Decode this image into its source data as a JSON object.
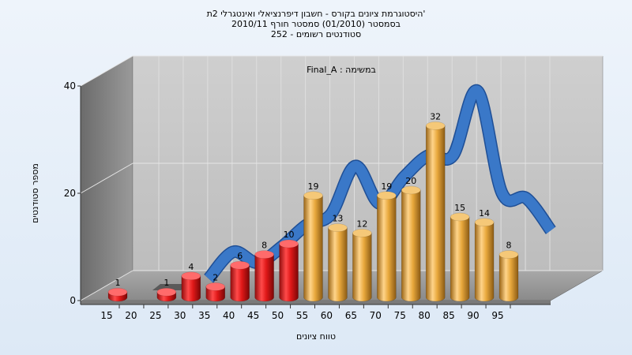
{
  "chart_data": {
    "type": "bar",
    "title_lines": [
      "היסטוגרמת ציונים בקורס - חשבון דיפרנציאלי ואינטגרלי 2ת'",
      "בסמסטר  (01/2010)  סמסטר חורף  2010/11",
      "252 - סטודנטים רשומים"
    ],
    "annotation": "Final_A : במשימה",
    "xlabel": "טווח ציונים",
    "ylabel": "מספר סטודנטים",
    "y_ticks": [
      "0",
      "20",
      "40"
    ],
    "ylim": [
      0,
      40
    ],
    "x_ticks": [
      "15",
      "20",
      "25",
      "30",
      "35",
      "40",
      "45",
      "50",
      "55",
      "60",
      "65",
      "70",
      "75",
      "80",
      "85",
      "90",
      "95"
    ],
    "bars": [
      {
        "x": 15,
        "value": 1,
        "label": "1",
        "color": "#e01818"
      },
      {
        "x": 25,
        "value": 1,
        "label": "1",
        "color": "#e01818"
      },
      {
        "x": 30,
        "value": 4,
        "label": "4",
        "color": "#e01818"
      },
      {
        "x": 35,
        "value": 2,
        "label": "2",
        "color": "#e01818"
      },
      {
        "x": 40,
        "value": 6,
        "label": "6",
        "color": "#e01818"
      },
      {
        "x": 45,
        "value": 8,
        "label": "8",
        "color": "#e01818"
      },
      {
        "x": 50,
        "value": 10,
        "label": "10",
        "color": "#e01818"
      },
      {
        "x": 55,
        "value": 19,
        "label": "19",
        "color": "#e8a83c"
      },
      {
        "x": 60,
        "value": 13,
        "label": "13",
        "color": "#e8a83c"
      },
      {
        "x": 65,
        "value": 12,
        "label": "12",
        "color": "#e8a83c"
      },
      {
        "x": 70,
        "value": 19,
        "label": "19",
        "color": "#e8a83c"
      },
      {
        "x": 75,
        "value": 20,
        "label": "20",
        "color": "#e8a83c"
      },
      {
        "x": 80,
        "value": 32,
        "label": "32",
        "color": "#e8a83c"
      },
      {
        "x": 85,
        "value": 15,
        "label": "15",
        "color": "#e8a83c"
      },
      {
        "x": 90,
        "value": 14,
        "label": "14",
        "color": "#e8a83c"
      },
      {
        "x": 95,
        "value": 8,
        "label": "8",
        "color": "#e8a83c"
      }
    ],
    "curve": {
      "type": "ribbon",
      "color": "#3a78c8",
      "points": [
        {
          "x": 30,
          "y": 1
        },
        {
          "x": 35,
          "y": 6
        },
        {
          "x": 40,
          "y": 4
        },
        {
          "x": 45,
          "y": 7
        },
        {
          "x": 50,
          "y": 11
        },
        {
          "x": 55,
          "y": 13
        },
        {
          "x": 60,
          "y": 22
        },
        {
          "x": 65,
          "y": 15
        },
        {
          "x": 70,
          "y": 20
        },
        {
          "x": 75,
          "y": 24
        },
        {
          "x": 80,
          "y": 24
        },
        {
          "x": 85,
          "y": 36
        },
        {
          "x": 90,
          "y": 17
        },
        {
          "x": 95,
          "y": 16
        },
        {
          "x": 100,
          "y": 10
        }
      ]
    },
    "grid": true
  }
}
